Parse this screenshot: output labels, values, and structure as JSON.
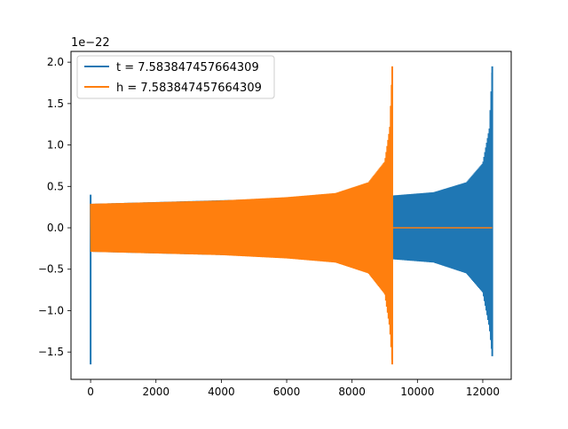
{
  "chart_data": {
    "type": "line",
    "title": "",
    "xlabel": "",
    "ylabel": "",
    "y_scale_label": "1e−22",
    "xlim": [
      -600,
      12870
    ],
    "ylim": [
      -1.83,
      2.13
    ],
    "x_ticks": [
      0,
      2000,
      4000,
      6000,
      8000,
      10000,
      12000
    ],
    "x_tick_labels": [
      "0",
      "2000",
      "4000",
      "6000",
      "8000",
      "10000",
      "12000"
    ],
    "y_ticks": [
      -1.5,
      -1.0,
      -0.5,
      0.0,
      0.5,
      1.0,
      1.5,
      2.0
    ],
    "y_tick_labels": [
      "−1.5",
      "−1.0",
      "−0.5",
      "0.0",
      "0.5",
      "1.0",
      "1.5",
      "2.0"
    ],
    "grid": false,
    "legend": {
      "position": "upper-left"
    },
    "series": [
      {
        "name": "t = 7.583847457664309",
        "color": "#1f77b4",
        "render": "oscillating-envelope",
        "spike_at_start": {
          "x": 0,
          "y_max": 0.4,
          "y_min": -1.65
        },
        "envelope": [
          {
            "x": 60,
            "y_upper": 0.29,
            "y_lower": -0.29
          },
          {
            "x": 9230,
            "y_upper": 0.39,
            "y_lower": -0.38
          },
          {
            "x": 10500,
            "y_upper": 0.43,
            "y_lower": -0.42
          },
          {
            "x": 11500,
            "y_upper": 0.55,
            "y_lower": -0.55
          },
          {
            "x": 12000,
            "y_upper": 0.78,
            "y_lower": -0.78
          },
          {
            "x": 12200,
            "y_upper": 1.2,
            "y_lower": -1.2
          },
          {
            "x": 12290,
            "y_upper": 1.95,
            "y_lower": -1.55
          }
        ]
      },
      {
        "name": "h = 7.583847457664309",
        "color": "#ff7f0e",
        "render": "oscillating-envelope",
        "envelope": [
          {
            "x": 0,
            "y_upper": 0.29,
            "y_lower": -0.29
          },
          {
            "x": 2000,
            "y_upper": 0.31,
            "y_lower": -0.31
          },
          {
            "x": 4000,
            "y_upper": 0.33,
            "y_lower": -0.33
          },
          {
            "x": 6000,
            "y_upper": 0.37,
            "y_lower": -0.37
          },
          {
            "x": 7500,
            "y_upper": 0.42,
            "y_lower": -0.42
          },
          {
            "x": 8500,
            "y_upper": 0.55,
            "y_lower": -0.55
          },
          {
            "x": 9000,
            "y_upper": 0.8,
            "y_lower": -0.8
          },
          {
            "x": 9150,
            "y_upper": 1.2,
            "y_lower": -1.2
          },
          {
            "x": 9230,
            "y_upper": 1.95,
            "y_lower": -1.65
          }
        ],
        "flat_after": {
          "x_start": 9230,
          "x_end": 12290,
          "y": 0.0
        }
      }
    ]
  }
}
